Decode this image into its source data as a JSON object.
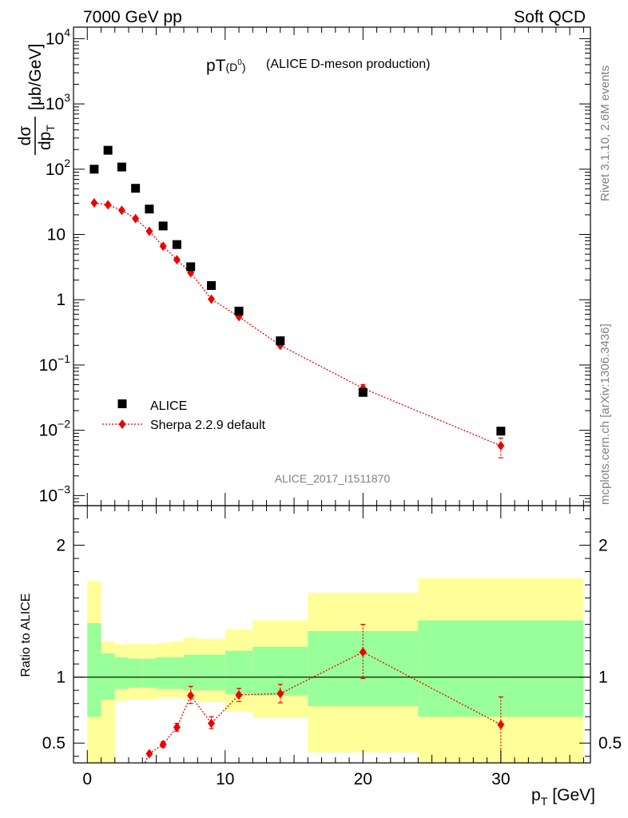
{
  "header": {
    "left": "7000 GeV pp",
    "right": "Soft QCD"
  },
  "side_labels": {
    "rivet": "Rivet 3.1.10,  2.6M events",
    "mcplots": "mcplots.cern.ch [arXiv:1306.3436]"
  },
  "chart_data": [
    {
      "type": "scatter",
      "title_main": "pT",
      "title_sub": "(D",
      "title_sup": "0",
      "title_close": ")",
      "title_rest": "(ALICE D-meson production)",
      "ylabel_num": "dσ",
      "ylabel_den_main": "dp",
      "ylabel_den_sub": "T",
      "ylabel_units": "[μb/GeV]",
      "ylim": [
        0.0007,
        15000
      ],
      "yscale": "log",
      "xlim": [
        -1,
        36.5
      ],
      "analysis_tag": "ALICE_2017_I1511870",
      "y_ticks": [
        {
          "value": 10000,
          "base": "10",
          "exp": "4"
        },
        {
          "value": 1000,
          "base": "10",
          "exp": "3"
        },
        {
          "value": 100,
          "base": "10",
          "exp": "2"
        },
        {
          "value": 10,
          "base": "10",
          "exp": ""
        },
        {
          "value": 1,
          "base": "1",
          "exp": ""
        },
        {
          "value": 0.1,
          "base": "10",
          "exp": "−1"
        },
        {
          "value": 0.01,
          "base": "10",
          "exp": "−2"
        },
        {
          "value": 0.001,
          "base": "10",
          "exp": "−3"
        }
      ],
      "legend": [
        {
          "name": "ALICE",
          "marker": "square",
          "color": "#000000"
        },
        {
          "name": "Sherpa 2.2.9 default",
          "marker": "diamond",
          "color": "#ee0000"
        }
      ],
      "series": [
        {
          "name": "ALICE",
          "x": [
            0.5,
            1.5,
            2.5,
            3.5,
            4.5,
            5.5,
            6.5,
            7.5,
            9,
            11,
            14,
            20,
            30
          ],
          "y": [
            100,
            195,
            108,
            51,
            24.5,
            13.5,
            7.0,
            3.2,
            1.65,
            0.67,
            0.235,
            0.038,
            0.0097
          ]
        },
        {
          "name": "Sherpa 2.2.9 default",
          "x": [
            0.5,
            1.5,
            2.5,
            3.5,
            4.5,
            5.5,
            6.5,
            7.5,
            9,
            11,
            14,
            20,
            30
          ],
          "y": [
            30.5,
            28.5,
            23.5,
            17.5,
            11.2,
            6.6,
            4.1,
            2.6,
            1.02,
            0.55,
            0.2,
            0.044,
            0.0058
          ],
          "err_low": [
            0,
            0,
            0,
            0,
            0,
            0,
            0,
            0,
            0,
            0,
            0,
            0.006,
            0.002
          ],
          "err_high": [
            0,
            0,
            0,
            0,
            0,
            0,
            0,
            0,
            0,
            0,
            0,
            0.006,
            0.0018
          ]
        }
      ]
    },
    {
      "type": "scatter",
      "ylabel": "Ratio to ALICE",
      "xlabel_main": "p",
      "xlabel_sub": "T",
      "xlabel_units": "[GeV]",
      "ylim": [
        0.35,
        2.3
      ],
      "xlim": [
        -1,
        36.5
      ],
      "y_ticks": [
        {
          "value": 2,
          "label": "2"
        },
        {
          "value": 1,
          "label": "1"
        },
        {
          "value": 0.5,
          "label": "0.5"
        }
      ],
      "x_ticks": [
        {
          "value": 0,
          "label": "0"
        },
        {
          "value": 10,
          "label": "10"
        },
        {
          "value": 20,
          "label": "20"
        },
        {
          "value": 30,
          "label": "30"
        }
      ],
      "bands": {
        "edges": [
          0,
          1,
          2,
          3,
          4,
          5,
          6,
          7,
          8,
          10,
          12,
          16,
          24,
          36
        ],
        "yellow_up": [
          1.73,
          1.27,
          1.25,
          1.25,
          1.25,
          1.26,
          1.27,
          1.3,
          1.29,
          1.36,
          1.43,
          1.64,
          1.75
        ],
        "yellow_low": [
          0.35,
          0.35,
          0.82,
          0.83,
          0.83,
          0.84,
          0.84,
          0.83,
          0.81,
          0.74,
          0.69,
          0.43,
          0.35
        ],
        "green_up": [
          1.41,
          1.18,
          1.15,
          1.14,
          1.14,
          1.15,
          1.15,
          1.17,
          1.17,
          1.2,
          1.23,
          1.35,
          1.43
        ],
        "green_low": [
          0.7,
          0.83,
          0.91,
          0.92,
          0.92,
          0.91,
          0.91,
          0.9,
          0.9,
          0.87,
          0.86,
          0.78,
          0.7
        ]
      },
      "series": [
        {
          "name": "Sherpa 2.2.9 default",
          "x": [
            4.5,
            5.5,
            6.5,
            7.5,
            9,
            11,
            14,
            20,
            30
          ],
          "y": [
            0.42,
            0.49,
            0.62,
            0.86,
            0.65,
            0.865,
            0.875,
            1.19,
            0.64
          ],
          "err_low": [
            0,
            0.02,
            0.03,
            0.06,
            0.04,
            0.05,
            0.07,
            0.2,
            0.35
          ],
          "err_high": [
            0,
            0.02,
            0.03,
            0.07,
            0.05,
            0.05,
            0.07,
            0.21,
            0.21
          ]
        }
      ]
    }
  ]
}
